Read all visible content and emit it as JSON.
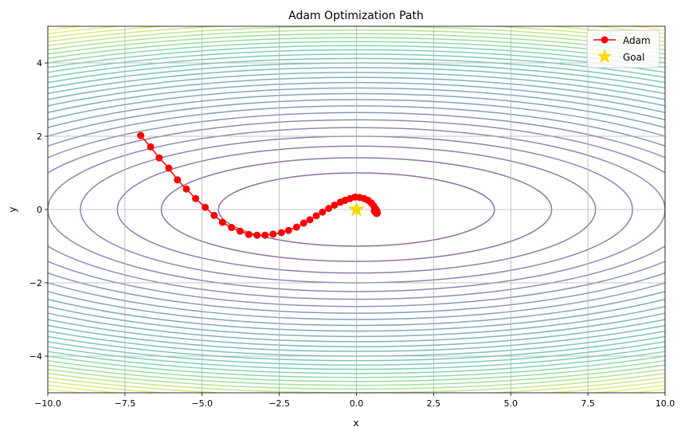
{
  "chart_data": {
    "type": "line",
    "title": "Adam Optimization Path",
    "xlabel": "x",
    "ylabel": "y",
    "xlim": [
      -10,
      10
    ],
    "ylim": [
      -5,
      5
    ],
    "xticks": [
      -10,
      -7.5,
      -5,
      -2.5,
      0,
      2.5,
      5,
      7.5,
      10
    ],
    "xtick_labels": [
      "−10.0",
      "−7.5",
      "−5.0",
      "−2.5",
      "0.0",
      "2.5",
      "5.0",
      "7.5",
      "10.0"
    ],
    "yticks": [
      -4,
      -2,
      0,
      2,
      4
    ],
    "ytick_labels": [
      "−4",
      "−2",
      "0",
      "2",
      "4"
    ],
    "grid": true,
    "contour": {
      "function": "x^2 + 20*y^2",
      "level_step": 20,
      "level_max": 600,
      "colormap": "viridis",
      "alpha": 0.6
    },
    "legend_position": "top-right",
    "series": [
      {
        "name": "Adam",
        "color": "#ff0000",
        "marker": "circle",
        "x": [
          -6.99,
          -6.67,
          -6.39,
          -6.08,
          -5.8,
          -5.51,
          -5.21,
          -4.9,
          -4.61,
          -4.34,
          -4.05,
          -3.77,
          -3.49,
          -3.22,
          -2.96,
          -2.7,
          -2.43,
          -2.2,
          -1.94,
          -1.71,
          -1.51,
          -1.3,
          -1.1,
          -0.9,
          -0.71,
          -0.52,
          -0.37,
          -0.21,
          -0.05,
          0.1,
          0.25,
          0.38,
          0.48,
          0.56,
          0.62,
          0.66,
          0.68,
          0.66,
          0.62,
          0.58,
          0.6,
          0.64
        ],
        "y": [
          2.02,
          1.71,
          1.41,
          1.13,
          0.81,
          0.56,
          0.3,
          0.06,
          -0.16,
          -0.35,
          -0.49,
          -0.59,
          -0.68,
          -0.7,
          -0.7,
          -0.67,
          -0.63,
          -0.57,
          -0.48,
          -0.37,
          -0.28,
          -0.17,
          -0.07,
          0.03,
          0.12,
          0.2,
          0.25,
          0.3,
          0.34,
          0.33,
          0.3,
          0.25,
          0.18,
          0.1,
          0.02,
          -0.04,
          -0.09,
          -0.11,
          -0.08,
          -0.04,
          -0.02,
          -0.06
        ]
      },
      {
        "name": "Goal",
        "color": "#ffd700",
        "marker": "star",
        "x": [
          0
        ],
        "y": [
          0
        ]
      }
    ]
  }
}
